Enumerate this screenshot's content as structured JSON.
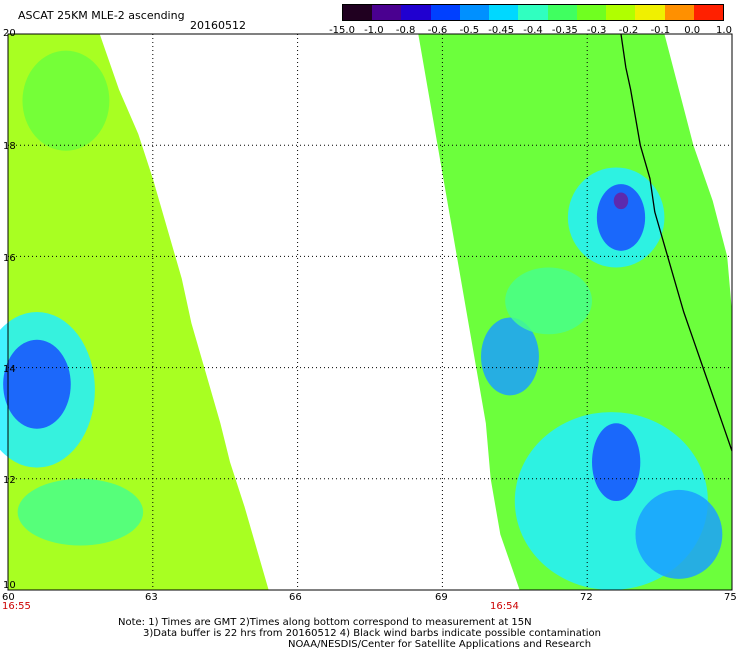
{
  "header": {
    "product": "ASCAT 25KM MLE-2 ascending",
    "date": "20160512"
  },
  "colorbar": {
    "labels": [
      "-15.0",
      "-1.0",
      "-0.8",
      "-0.6",
      "-0.5",
      "-0.45",
      "-0.4",
      "-0.35",
      "-0.3",
      "-0.2",
      "-0.1",
      "0.0",
      "1.0"
    ],
    "colors": [
      "#200020",
      "#4a0090",
      "#2000d0",
      "#0040ff",
      "#0090ff",
      "#00d8ff",
      "#30ffc0",
      "#40ff60",
      "#70ff20",
      "#b0ff00",
      "#f0f000",
      "#ff9000",
      "#ff2000"
    ]
  },
  "map": {
    "lon_range": [
      60,
      75
    ],
    "lat_range": [
      10,
      20
    ],
    "x_ticks": [
      "60",
      "63",
      "66",
      "69",
      "72",
      "75"
    ],
    "y_ticks": [
      "20",
      "18",
      "16",
      "14",
      "12",
      "10"
    ],
    "pass_times": [
      "16:55",
      "16:54"
    ]
  },
  "notes": {
    "line1": "Note: 1) Times are GMT 2)Times along bottom correspond to measurement at 15N",
    "line2": "3)Data buffer is 22 hrs from 20160512 4) Black wind barbs indicate possible contamination",
    "line3": "NOAA/NESDIS/Center for Satellite Applications and Research"
  }
}
